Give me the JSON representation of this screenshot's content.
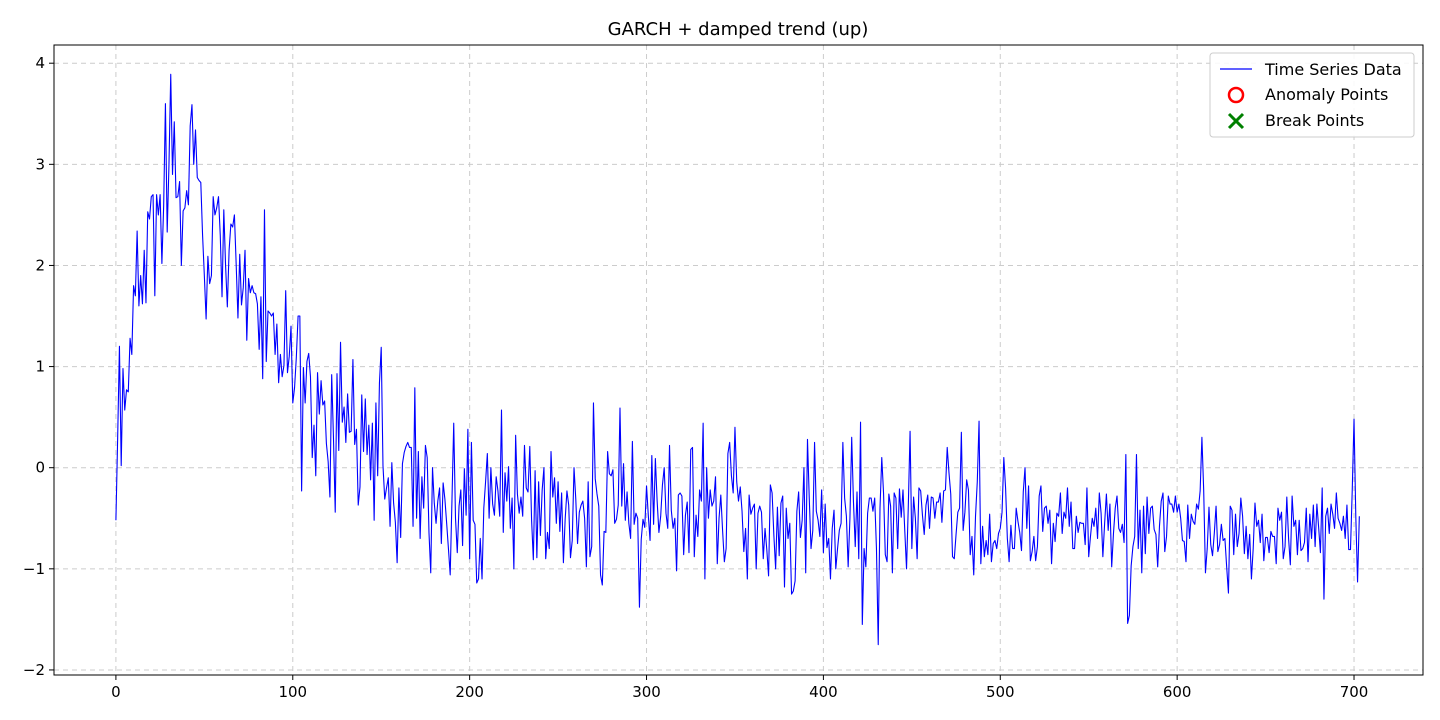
{
  "chart_data": {
    "type": "line",
    "title": "GARCH + damped trend (up)",
    "xlabel": "",
    "ylabel": "",
    "xlim": [
      -35,
      739
    ],
    "ylim": [
      -2.05,
      4.18
    ],
    "x_ticks": [
      0,
      100,
      200,
      300,
      400,
      500,
      600,
      700
    ],
    "y_ticks": [
      -2,
      -1,
      0,
      1,
      2,
      3,
      4
    ],
    "x_tick_labels": [
      "0",
      "100",
      "200",
      "300",
      "400",
      "500",
      "600",
      "700"
    ],
    "y_tick_labels": [
      "−2",
      "−1",
      "0",
      "1",
      "2",
      "3",
      "4"
    ],
    "grid": true,
    "legend_position": "upper-right",
    "legend": [
      {
        "label": "Time Series Data",
        "marker": "line",
        "color": "#0000ff"
      },
      {
        "label": "Anomaly Points",
        "marker": "circle",
        "color": "#ff0000"
      },
      {
        "label": "Break Points",
        "marker": "x",
        "color": "#008000"
      }
    ],
    "series": [
      {
        "name": "Time Series Data",
        "color": "#0000ff",
        "x_start": 0,
        "x_step": 1,
        "values": [
          -0.52,
          0.3,
          1.2,
          0.02,
          0.98,
          0.57,
          0.77,
          0.75,
          1.28,
          1.12,
          1.8,
          1.7,
          2.34,
          1.6,
          1.9,
          1.62,
          2.15,
          1.63,
          2.53,
          2.46,
          2.68,
          2.7,
          1.7,
          2.7,
          2.5,
          2.7,
          2.02,
          2.59,
          3.6,
          2.33,
          3.0,
          3.89,
          2.9,
          3.42,
          2.67,
          2.68,
          2.83,
          2.0,
          2.54,
          2.57,
          2.74,
          2.6,
          3.38,
          3.59,
          3.0,
          3.34,
          2.87,
          2.84,
          2.82,
          2.3,
          1.9,
          1.47,
          2.09,
          1.82,
          1.9,
          2.68,
          2.5,
          2.57,
          2.68,
          2.3,
          1.69,
          2.55,
          2.0,
          1.59,
          2.15,
          2.41,
          2.38,
          2.5,
          2.01,
          1.48,
          2.11,
          1.61,
          1.78,
          2.15,
          1.26,
          1.87,
          1.73,
          1.8,
          1.73,
          1.72,
          1.62,
          1.17,
          1.69,
          0.88,
          2.55,
          1.05,
          1.55,
          1.53,
          1.5,
          1.53,
          1.12,
          1.42,
          0.84,
          1.12,
          0.9,
          1.01,
          1.75,
          0.94,
          1.1,
          1.4,
          0.64,
          0.79,
          1.09,
          1.5,
          1.5,
          -0.23,
          0.99,
          0.64,
          1.05,
          1.13,
          0.9,
          0.1,
          0.42,
          -0.08,
          0.94,
          0.53,
          0.86,
          0.62,
          0.66,
          0.24,
          0.06,
          -0.29,
          0.92,
          0.3,
          -0.44,
          0.93,
          0.17,
          1.24,
          0.45,
          0.6,
          0.25,
          0.73,
          0.35,
          0.36,
          1.07,
          0.23,
          0.38,
          -0.37,
          -0.19,
          0.72,
          0.16,
          0.68,
          0.13,
          0.42,
          -0.12,
          0.44,
          -0.52,
          0.64,
          -0.08,
          0.84,
          1.19,
          0.02,
          -0.31,
          -0.2,
          -0.1,
          -0.58,
          0.05,
          -0.35,
          -0.54,
          -0.94,
          -0.2,
          -0.69,
          0.04,
          0.15,
          0.21,
          0.25,
          0.2,
          0.2,
          -0.58,
          0.79,
          -0.5,
          0.16,
          -0.7,
          -0.09,
          -0.4,
          0.22,
          0.1,
          -0.64,
          -1.04,
          0.0,
          -0.35,
          -0.55,
          -0.33,
          -0.2,
          -0.75,
          -0.15,
          -0.31,
          -0.55,
          -0.8,
          -1.06,
          -0.32,
          0.44,
          -0.5,
          -0.84,
          -0.38,
          -0.22,
          -0.77,
          -0.01,
          -0.47,
          0.38,
          -0.9,
          0.25,
          -0.52,
          -0.56,
          -1.14,
          -1.1,
          -0.7,
          -1.1,
          -0.4,
          -0.14,
          0.14,
          -0.5,
          0.0,
          -0.36,
          -0.47,
          -0.09,
          -0.23,
          -0.48,
          0.57,
          -0.64,
          -0.05,
          -0.33,
          0.01,
          -0.6,
          -0.3,
          -1.0,
          0.32,
          -0.26,
          -0.45,
          -0.29,
          -0.48,
          0.22,
          -0.2,
          -0.24,
          0.21,
          -0.51,
          -0.91,
          -0.03,
          -0.89,
          -0.14,
          -0.67,
          -0.22,
          0.0,
          -0.9,
          -0.64,
          -0.8,
          0.16,
          -0.29,
          -0.1,
          -0.55,
          -0.14,
          -0.63,
          -0.25,
          -0.94,
          -0.51,
          -0.23,
          -0.37,
          -0.89,
          -0.72,
          0.0,
          -0.31,
          -0.75,
          -0.44,
          -0.37,
          -0.33,
          -0.5,
          -0.98,
          -0.14,
          -0.88,
          -0.78,
          0.64,
          -0.11,
          -0.26,
          -0.38,
          -1.06,
          -1.16,
          -0.63,
          -0.64,
          0.16,
          -0.06,
          -0.08,
          -0.02,
          -0.55,
          -0.51,
          -0.37,
          0.59,
          -0.38,
          0.04,
          -0.52,
          -0.24,
          -0.55,
          -0.7,
          0.26,
          -0.56,
          -0.45,
          -0.5,
          -1.38,
          -0.71,
          -0.51,
          -0.59,
          -0.18,
          -0.47,
          -0.72,
          0.12,
          -0.56,
          0.09,
          -0.33,
          -0.64,
          -0.48,
          -0.17,
          0.0,
          -0.45,
          -0.6,
          0.22,
          -0.42,
          -0.6,
          -0.5,
          -1.02,
          -0.27,
          -0.25,
          -0.28,
          -0.86,
          -0.47,
          -0.34,
          -0.84,
          0.18,
          0.2,
          -0.88,
          -0.47,
          -0.68,
          -0.22,
          -0.33,
          0.44,
          -1.1,
          0.0,
          -0.5,
          -0.22,
          -0.38,
          -0.33,
          -0.09,
          -0.95,
          -0.5,
          -0.27,
          -0.62,
          -0.93,
          -0.8,
          0.14,
          0.25,
          -0.08,
          -0.25,
          0.4,
          -0.14,
          -0.33,
          -0.19,
          -0.43,
          -0.83,
          -0.6,
          -1.1,
          -0.27,
          -0.46,
          -0.4,
          -0.36,
          -1.0,
          -0.45,
          -0.38,
          -0.44,
          -0.9,
          -0.6,
          -0.81,
          -1.07,
          -0.17,
          -0.25,
          -0.67,
          -1.0,
          -0.39,
          -0.87,
          -0.35,
          -0.28,
          -1.18,
          -0.4,
          -0.7,
          -0.55,
          -1.25,
          -1.22,
          -1.12,
          -0.43,
          -0.24,
          -0.69,
          -0.52,
          0.0,
          -1.04,
          0.28,
          -0.3,
          -0.8,
          -0.62,
          0.25,
          -0.43,
          -0.52,
          -0.68,
          -0.22,
          -0.84,
          -0.36,
          -0.79,
          -0.7,
          -1.1,
          -0.6,
          -0.42,
          -1.0,
          -0.8,
          -0.62,
          -0.55,
          0.25,
          -0.3,
          -0.48,
          -0.98,
          -0.5,
          0.3,
          -0.34,
          -0.78,
          -0.24,
          -0.9,
          0.45,
          -1.55,
          -0.8,
          -0.98,
          -0.45,
          -0.3,
          -0.3,
          -0.43,
          -0.3,
          -0.8,
          -1.75,
          -0.4,
          0.1,
          -0.25,
          -0.86,
          -0.93,
          -0.26,
          -0.38,
          -1.04,
          -0.25,
          -0.3,
          -0.8,
          -0.21,
          -0.49,
          -0.22,
          -0.62,
          -1.0,
          -0.38,
          0.36,
          -0.8,
          -0.29,
          -0.5,
          -0.9,
          -0.2,
          -0.23,
          -0.47,
          -0.66,
          -0.37,
          -0.27,
          -0.6,
          -0.29,
          -0.3,
          -0.5,
          -0.34,
          -0.34,
          -0.25,
          -0.54,
          -0.23,
          -0.22,
          0.2,
          -0.05,
          -0.26,
          -0.88,
          -0.9,
          -0.66,
          -0.44,
          -0.4,
          0.35,
          -0.62,
          -0.44,
          -0.12,
          -0.22,
          -0.86,
          -0.68,
          -1.06,
          -0.48,
          -0.14,
          0.46,
          -0.95,
          -0.58,
          -0.88,
          -0.72,
          -0.86,
          -0.46,
          -0.93,
          -0.75,
          -0.72,
          -0.8,
          -0.65,
          -0.6,
          -0.44,
          0.1,
          -0.2,
          -0.7,
          -0.93,
          -0.57,
          -0.8,
          -0.8,
          -0.4,
          -0.53,
          -0.64,
          -0.82,
          -0.24,
          0.0,
          -0.6,
          -0.18,
          -0.92,
          -0.83,
          -0.68,
          -0.92,
          -0.78,
          -0.28,
          -0.18,
          -0.63,
          -0.4,
          -0.38,
          -0.55,
          -0.42,
          -0.95,
          -0.55,
          -0.73,
          -0.45,
          -0.48,
          -0.25,
          -0.65,
          -0.44,
          -0.5,
          -0.2,
          -0.58,
          -0.34,
          -0.8,
          -0.8,
          -0.48,
          -0.64,
          -0.54,
          -0.55,
          -0.55,
          -0.76,
          -0.2,
          -0.88,
          -0.68,
          -0.5,
          -0.58,
          -0.4,
          -0.7,
          -0.25,
          -0.45,
          -0.88,
          -0.55,
          -0.26,
          -0.62,
          -0.36,
          -0.98,
          -0.65,
          -0.4,
          -0.28,
          -0.6,
          -0.64,
          -0.56,
          -0.74,
          0.13,
          -1.54,
          -1.46,
          -0.97,
          -0.78,
          -0.68,
          0.13,
          -0.8,
          -0.42,
          -1.04,
          -0.38,
          -0.85,
          -0.29,
          -0.65,
          -0.4,
          -0.38,
          -0.61,
          -0.66,
          -0.98,
          -0.58,
          -0.33,
          -0.25,
          -0.83,
          -0.68,
          -0.28,
          -0.36,
          -0.36,
          -0.44,
          -0.28,
          -0.44,
          -0.36,
          -0.5,
          -0.72,
          -0.73,
          -0.93,
          -0.37,
          -0.7,
          -0.46,
          -0.53,
          -0.56,
          -0.36,
          -0.41,
          -0.23,
          0.3,
          -0.22,
          -1.04,
          -0.8,
          -0.39,
          -0.76,
          -0.87,
          -0.65,
          -0.38,
          -0.83,
          -0.76,
          -0.56,
          -0.72,
          -0.7,
          -0.98,
          -1.24,
          -0.38,
          -0.42,
          -0.86,
          -0.46,
          -0.78,
          -0.65,
          -0.3,
          -0.48,
          -0.85,
          -0.58,
          -0.9,
          -0.66,
          -1.1,
          -0.8,
          -0.35,
          -0.58,
          -0.52,
          -0.74,
          -0.46,
          -0.92,
          -0.69,
          -0.69,
          -0.84,
          -0.63,
          -0.68,
          -0.68,
          -0.95,
          -0.4,
          -0.52,
          -0.44,
          -0.9,
          -0.78,
          -0.29,
          -0.7,
          -0.96,
          -0.28,
          -0.58,
          -0.52,
          -0.86,
          -0.52,
          -0.82,
          -0.8,
          -0.74,
          -0.4,
          -0.93,
          -0.46,
          -0.7,
          -0.37,
          -0.78,
          -0.36,
          -0.59,
          -0.84,
          -0.2,
          -1.3,
          -0.48,
          -0.4,
          -0.65,
          -0.36,
          -0.46,
          -0.6,
          -0.25,
          -0.5,
          -0.55,
          -0.62,
          -0.48,
          -0.7,
          -0.37,
          -0.81,
          -0.81,
          -0.22,
          0.48,
          -0.48,
          -1.13,
          -0.48
        ]
      }
    ]
  }
}
